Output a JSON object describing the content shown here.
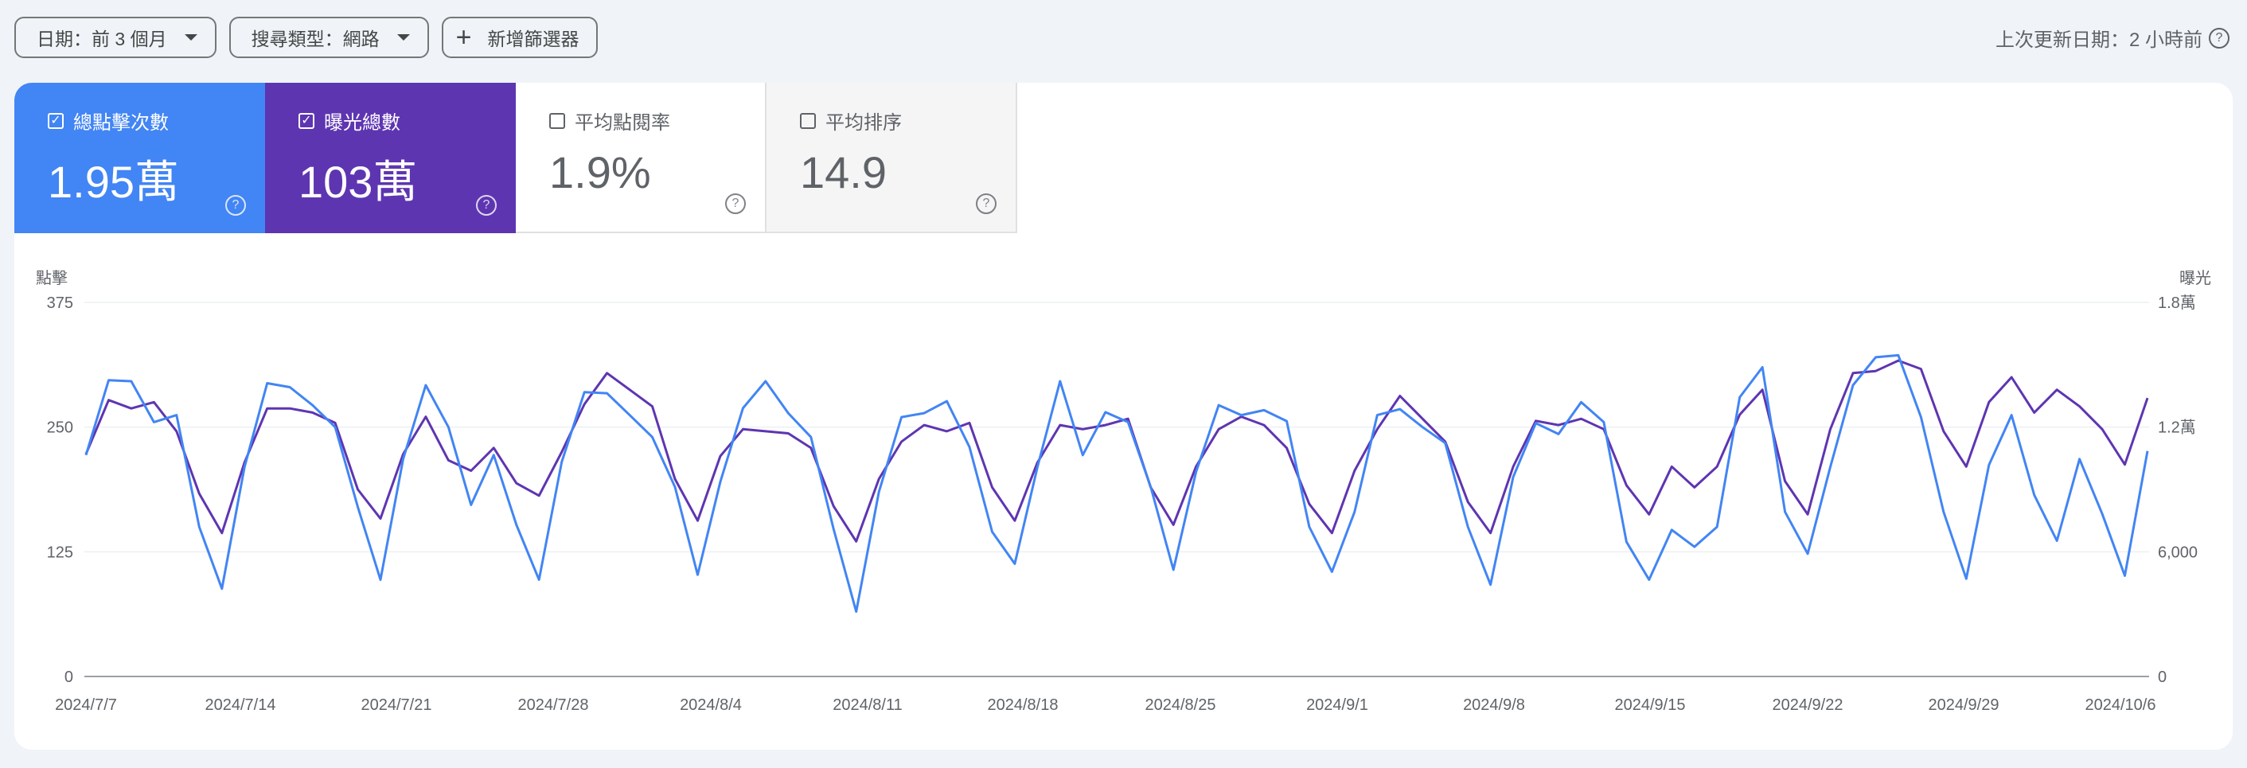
{
  "filters": {
    "date_label": "日期：前 3 個月",
    "search_type_label": "搜尋類型：網路",
    "add_filter_label": "新增篩選器"
  },
  "last_updated": "上次更新日期：2 小時前",
  "metrics": [
    {
      "label": "總點擊次數",
      "value": "1.95萬",
      "checked": true
    },
    {
      "label": "曝光總數",
      "value": "103萬",
      "checked": true
    },
    {
      "label": "平均點閱率",
      "value": "1.9%",
      "checked": false
    },
    {
      "label": "平均排序",
      "value": "14.9",
      "checked": false
    }
  ],
  "colors": {
    "clicks": "#4285f4",
    "impressions": "#5e35b1",
    "background": "#f0f4f9"
  },
  "chart_data": {
    "type": "line",
    "left_axis_title": "點擊",
    "right_axis_title": "曝光",
    "left_ticks": [
      "0",
      "125",
      "250",
      "375"
    ],
    "right_ticks": [
      "0",
      "6,000",
      "1.2萬",
      "1.8萬"
    ],
    "ylim_left": [
      0,
      375
    ],
    "ylim_right": [
      0,
      18000
    ],
    "x_tick_labels": [
      "2024/7/7",
      "2024/7/14",
      "2024/7/21",
      "2024/7/28",
      "2024/8/4",
      "2024/8/11",
      "2024/8/18",
      "2024/8/25",
      "2024/9/1",
      "2024/9/8",
      "2024/9/15",
      "2024/9/22",
      "2024/9/29",
      "2024/10/6"
    ],
    "x_start": "2024/7/7",
    "grid": true,
    "series": [
      {
        "name": "總點擊次數",
        "axis": "left",
        "values": [
          222,
          297,
          296,
          255,
          262,
          150,
          88,
          210,
          294,
          290,
          272,
          250,
          170,
          97,
          218,
          292,
          250,
          172,
          222,
          152,
          97,
          215,
          285,
          284,
          262,
          240,
          190,
          102,
          195,
          269,
          296,
          264,
          240,
          148,
          65,
          185,
          260,
          264,
          276,
          230,
          145,
          113,
          210,
          296,
          222,
          265,
          255,
          190,
          107,
          205,
          272,
          262,
          267,
          256,
          150,
          105,
          165,
          262,
          268,
          250,
          234,
          150,
          92,
          200,
          254,
          243,
          275,
          255,
          135,
          97,
          147,
          130,
          150,
          280,
          310,
          165,
          123,
          210,
          292,
          320,
          322,
          260,
          165,
          98,
          212,
          262,
          182,
          136,
          218,
          163,
          101,
          226
        ]
      },
      {
        "name": "曝光總數",
        "axis": "right",
        "values": [
          10700,
          13300,
          12900,
          13200,
          11800,
          8800,
          6900,
          10300,
          12900,
          12900,
          12700,
          12200,
          9000,
          7600,
          10700,
          12500,
          10400,
          9900,
          11000,
          9300,
          8700,
          10800,
          13100,
          14600,
          13800,
          13000,
          9500,
          7500,
          10600,
          11900,
          11800,
          11700,
          11000,
          8200,
          6500,
          9500,
          11300,
          12100,
          11800,
          12200,
          9100,
          7500,
          10300,
          12100,
          11900,
          12100,
          12400,
          9100,
          7300,
          10100,
          11900,
          12500,
          12100,
          11000,
          8300,
          6900,
          9900,
          11900,
          13500,
          12400,
          11300,
          8400,
          6900,
          10100,
          12300,
          12100,
          12400,
          11900,
          9200,
          7800,
          10100,
          9100,
          10100,
          12600,
          13800,
          9400,
          7800,
          11900,
          14600,
          14700,
          15200,
          14800,
          11800,
          10100,
          13200,
          14400,
          12700,
          13800,
          13000,
          11900,
          10200,
          13400
        ]
      }
    ]
  }
}
